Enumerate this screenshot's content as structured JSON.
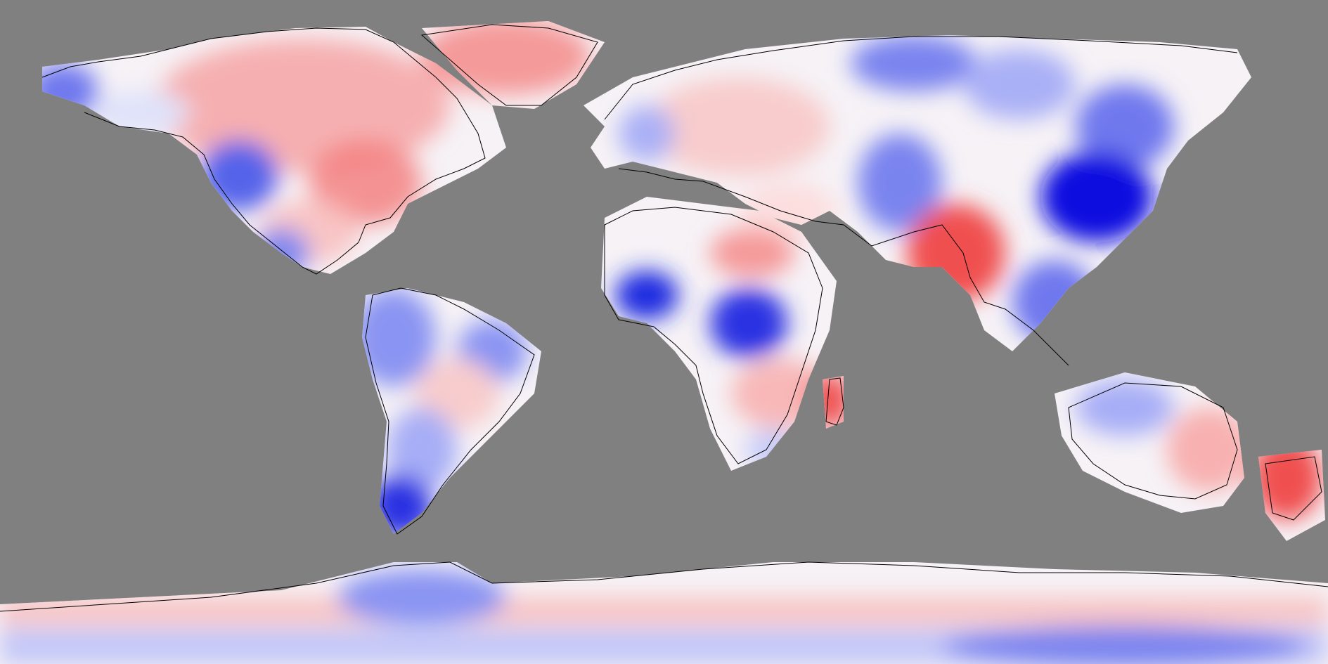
{
  "map": {
    "projection": "equirectangular",
    "background_color": "#808080",
    "coastline_color": "#000000",
    "palette": {
      "strong_negative": "#1010e0",
      "negative": "#6f78ee",
      "weak_negative": "#c8ccf8",
      "neutral": "#f6f4f8",
      "weak_positive": "#f8c4c4",
      "positive": "#f59a9a",
      "strong_positive": "#f05050"
    },
    "regions": [
      {
        "name": "north-america",
        "tone": "positive"
      },
      {
        "name": "greenland",
        "tone": "positive"
      },
      {
        "name": "alaska",
        "tone": "negative"
      },
      {
        "name": "western-us",
        "tone": "negative"
      },
      {
        "name": "mexico",
        "tone": "negative"
      },
      {
        "name": "south-america",
        "tone": "weak_negative"
      },
      {
        "name": "patagonia",
        "tone": "strong_negative"
      },
      {
        "name": "europe",
        "tone": "weak_positive"
      },
      {
        "name": "siberia",
        "tone": "negative"
      },
      {
        "name": "east-china",
        "tone": "strong_negative"
      },
      {
        "name": "india",
        "tone": "strong_positive"
      },
      {
        "name": "africa",
        "tone": "weak_positive"
      },
      {
        "name": "west-africa",
        "tone": "strong_negative"
      },
      {
        "name": "central-africa",
        "tone": "strong_negative"
      },
      {
        "name": "madagascar",
        "tone": "strong_positive"
      },
      {
        "name": "southeast-asia",
        "tone": "negative"
      },
      {
        "name": "australia",
        "tone": "weak_positive"
      },
      {
        "name": "new-zealand",
        "tone": "strong_positive"
      },
      {
        "name": "antarctica",
        "tone": "weak_positive"
      },
      {
        "name": "antarctic-interior",
        "tone": "negative"
      }
    ]
  }
}
